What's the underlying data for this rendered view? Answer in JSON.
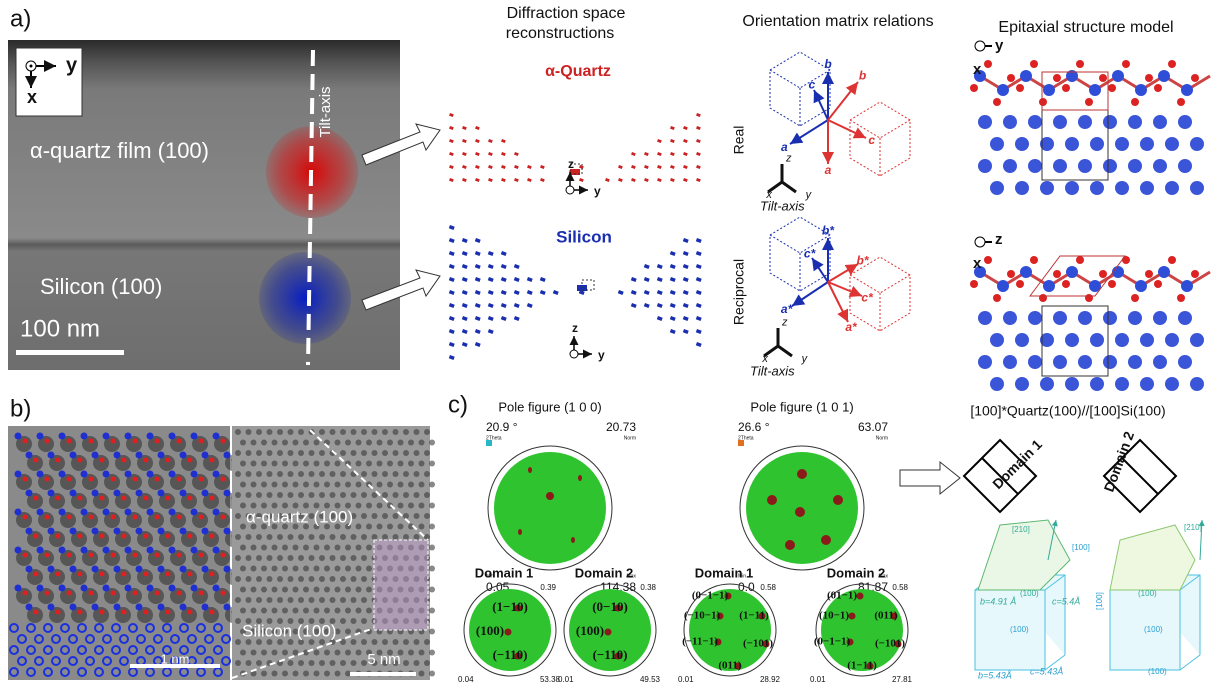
{
  "panel_a": {
    "label": "a)",
    "image": {
      "axis_y": "y",
      "axis_x": "x",
      "film_label": "α-quartz film (100)",
      "tilt_axis": "Tilt-axis",
      "substrate_label": "Silicon (100)",
      "scale_bar": "100 nm"
    },
    "diffraction": {
      "title_line1": "Diffraction space",
      "title_line2": "reconstructions",
      "quartz": "α-Quartz",
      "silicon": "Silicon",
      "axis_z": "z",
      "axis_y": "y"
    },
    "orientation": {
      "title": "Orientation matrix relations",
      "real": "Real",
      "reciprocal": "Reciprocal",
      "real_vectors": [
        "b",
        "c",
        "a",
        "b",
        "c",
        "a"
      ],
      "reciprocal_vectors": [
        "b*",
        "c*",
        "a*",
        "b*",
        "c*",
        "a*"
      ],
      "frame": [
        "z",
        "x",
        "y"
      ],
      "tilt_axis": "Tilt-axis"
    },
    "epitaxial": {
      "title": "Epitaxial structure model",
      "top_axes": [
        "y",
        "x"
      ],
      "bottom_axes": [
        "z",
        "x"
      ]
    }
  },
  "panel_b": {
    "label": "b)",
    "left_scale": "1 nm",
    "film_label": "α-quartz (100)",
    "substrate_label": "Silicon (100)",
    "right_scale": "5 nm"
  },
  "panel_c": {
    "label": "c)",
    "pole_100": {
      "title": "Pole figure (1 0 0)",
      "angle": "20.9 °",
      "norm": "20.73",
      "theta": "2Theta",
      "norm_label": "Norm",
      "min_label": "Min",
      "min": "0.05",
      "max_label": "Max",
      "max": "114.38"
    },
    "pole_101": {
      "title": "Pole figure (1 0 1)",
      "angle": "26.6 °",
      "norm": "63.07",
      "theta": "2Theta",
      "norm_label": "Norm",
      "min_label": "Min",
      "min": "0.0",
      "max_label": "Max",
      "max": "81.87"
    },
    "domains": [
      {
        "title": "Domain 1",
        "norm": "0.39",
        "min": "0.04",
        "max": "53.38",
        "planes": [
          "(1−10)",
          "(100)",
          "(−110)"
        ]
      },
      {
        "title": "Domain 2",
        "norm": "0.38",
        "min": "0.01",
        "max": "49.53",
        "planes": [
          "(0−10)",
          "(100)",
          "(−110)"
        ]
      },
      {
        "title": "Domain 1",
        "norm": "0.58",
        "min": "0.01",
        "max": "28.92",
        "planes": [
          "(0−1−1)",
          "(−10−1)",
          "(1−11)",
          "(−11−1)",
          "(−101)",
          "(011)"
        ]
      },
      {
        "title": "Domain 2",
        "norm": "0.58",
        "min": "0.01",
        "max": "27.81",
        "planes": [
          "(01−1)",
          "(10−1)",
          "(011)",
          "(0−1−1)",
          "(−101)",
          "(1−11)"
        ]
      }
    ],
    "relation": "[100]*Quartz(100)//[100]Si(100)",
    "domain_1": "Domain 1",
    "domain_2": "Domain 2",
    "cell_labels": [
      "[210]",
      "[100]",
      "b=4.91 Å",
      "(100)",
      "c=5.4Å",
      "b=5.43Å",
      "c=5.43Å"
    ]
  }
}
